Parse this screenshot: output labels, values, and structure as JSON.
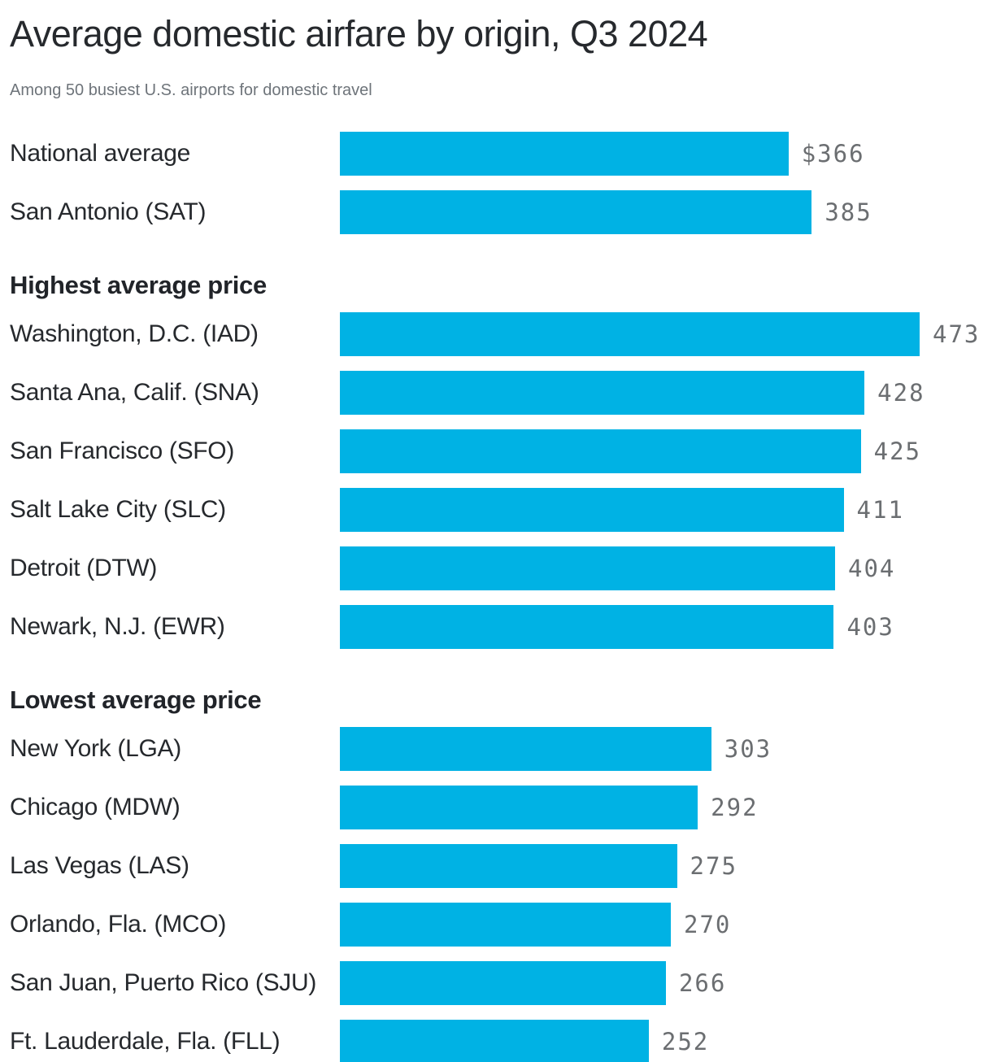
{
  "header": {
    "title": "Average domestic airfare by origin, Q3 2024",
    "subtitle": "Among 50 busiest U.S. airports for domestic travel"
  },
  "colors": {
    "bar": "#00b2e4",
    "value_text": "#6b6e71",
    "label_text": "#26292d",
    "title_text": "#26292d",
    "subtitle_text": "#6e747a"
  },
  "chart_data": {
    "type": "bar",
    "orientation": "horizontal",
    "title": "Average domestic airfare by origin, Q3 2024",
    "subtitle": "Among 50 busiest U.S. airports for domestic travel",
    "unit": "USD",
    "xlim": [
      0,
      473
    ],
    "grid": false,
    "legend": false,
    "sections": [
      {
        "header": "",
        "rows": [
          {
            "label": "National average",
            "value": 366,
            "value_label": "$366"
          },
          {
            "label": "San Antonio (SAT)",
            "value": 385,
            "value_label": "385"
          }
        ]
      },
      {
        "header": "Highest average price",
        "rows": [
          {
            "label": "Washington, D.C. (IAD)",
            "value": 473,
            "value_label": "473"
          },
          {
            "label": "Santa Ana, Calif. (SNA)",
            "value": 428,
            "value_label": "428"
          },
          {
            "label": "San Francisco (SFO)",
            "value": 425,
            "value_label": "425"
          },
          {
            "label": "Salt Lake City (SLC)",
            "value": 411,
            "value_label": "411"
          },
          {
            "label": "Detroit (DTW)",
            "value": 404,
            "value_label": "404"
          },
          {
            "label": "Newark, N.J. (EWR)",
            "value": 403,
            "value_label": "403"
          }
        ]
      },
      {
        "header": "Lowest average price",
        "rows": [
          {
            "label": "New York (LGA)",
            "value": 303,
            "value_label": "303"
          },
          {
            "label": "Chicago (MDW)",
            "value": 292,
            "value_label": "292"
          },
          {
            "label": "Las Vegas (LAS)",
            "value": 275,
            "value_label": "275"
          },
          {
            "label": "Orlando, Fla. (MCO)",
            "value": 270,
            "value_label": "270"
          },
          {
            "label": "San Juan, Puerto Rico (SJU)",
            "value": 266,
            "value_label": "266"
          },
          {
            "label": "Ft. Lauderdale, Fla. (FLL)",
            "value": 252,
            "value_label": "252"
          }
        ]
      }
    ]
  }
}
